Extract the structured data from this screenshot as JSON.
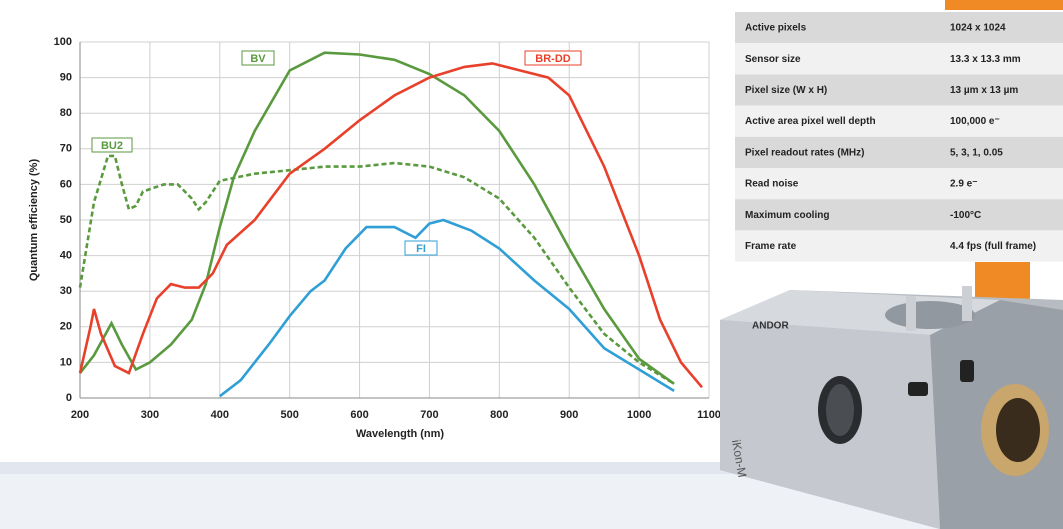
{
  "chart_data": {
    "type": "line",
    "x_label": "Wavelength (nm)",
    "y_label": "Quantum efficiency (%)",
    "xlim": [
      200,
      1100
    ],
    "xticks": [
      200,
      300,
      400,
      500,
      600,
      700,
      800,
      900,
      1000,
      1100
    ],
    "ylim": [
      0,
      100
    ],
    "yticks": [
      0,
      10,
      20,
      30,
      40,
      50,
      60,
      70,
      80,
      90,
      100
    ],
    "grid": true,
    "series": [
      {
        "name": "BU2",
        "color": "#5a9a3f",
        "dashed": true,
        "x": [
          200,
          220,
          240,
          250,
          260,
          270,
          280,
          290,
          320,
          340,
          360,
          370,
          380,
          400,
          450,
          500,
          550,
          600,
          650,
          700,
          750,
          800,
          850,
          900,
          950,
          1000,
          1050
        ],
        "values": [
          31,
          55,
          68,
          68,
          60,
          53,
          54,
          58,
          60,
          60,
          56,
          53,
          55,
          61,
          63,
          64,
          65,
          65,
          66,
          65,
          62,
          56,
          45,
          31,
          18,
          10,
          4
        ]
      },
      {
        "name": "BV",
        "color": "#5a9a3f",
        "dashed": false,
        "x": [
          200,
          220,
          245,
          260,
          280,
          300,
          330,
          360,
          380,
          400,
          420,
          450,
          500,
          550,
          600,
          650,
          700,
          750,
          800,
          850,
          900,
          950,
          1000,
          1050
        ],
        "values": [
          7,
          12,
          21,
          15,
          8,
          10,
          15,
          22,
          32,
          48,
          62,
          75,
          92,
          97,
          96.5,
          95,
          91,
          85,
          75,
          60,
          42,
          25,
          11,
          4
        ]
      },
      {
        "name": "BR-DD",
        "color": "#e8402a",
        "dashed": false,
        "x": [
          200,
          215,
          220,
          230,
          250,
          270,
          290,
          310,
          330,
          350,
          370,
          390,
          410,
          450,
          500,
          550,
          600,
          650,
          700,
          750,
          790,
          830,
          870,
          900,
          950,
          1000,
          1030,
          1060,
          1090
        ],
        "values": [
          7,
          20,
          25,
          18,
          9,
          7,
          18,
          28,
          32,
          31,
          31,
          35,
          43,
          50,
          63,
          70,
          78,
          85,
          90,
          93,
          94,
          92,
          90,
          85,
          65,
          40,
          22,
          10,
          3
        ]
      },
      {
        "name": "FI",
        "color": "#2f9fd6",
        "dashed": false,
        "x": [
          400,
          430,
          470,
          500,
          530,
          550,
          580,
          610,
          650,
          680,
          700,
          720,
          760,
          800,
          850,
          900,
          950,
          1000,
          1050
        ],
        "values": [
          0.5,
          5,
          15,
          23,
          30,
          33,
          42,
          48,
          48,
          45,
          49,
          50,
          47,
          42,
          33,
          25,
          14,
          8,
          2
        ]
      }
    ]
  },
  "table": {
    "rows": [
      [
        "Active pixels",
        "1024 x 1024"
      ],
      [
        "Sensor size",
        "13.3 x 13.3 mm"
      ],
      [
        "Pixel size (W x H)",
        "13 µm x 13 µm"
      ],
      [
        "Active area pixel well depth",
        "100,000 e⁻"
      ],
      [
        "Pixel readout rates (MHz)",
        "5, 3, 1, 0.05"
      ],
      [
        "Read noise",
        "2.9 e⁻"
      ],
      [
        "Maximum cooling",
        "-100°C"
      ],
      [
        "Frame rate",
        "4.4 fps (full frame)"
      ]
    ]
  },
  "camera": {
    "brand": "ANDOR",
    "model": "iKon-M"
  }
}
